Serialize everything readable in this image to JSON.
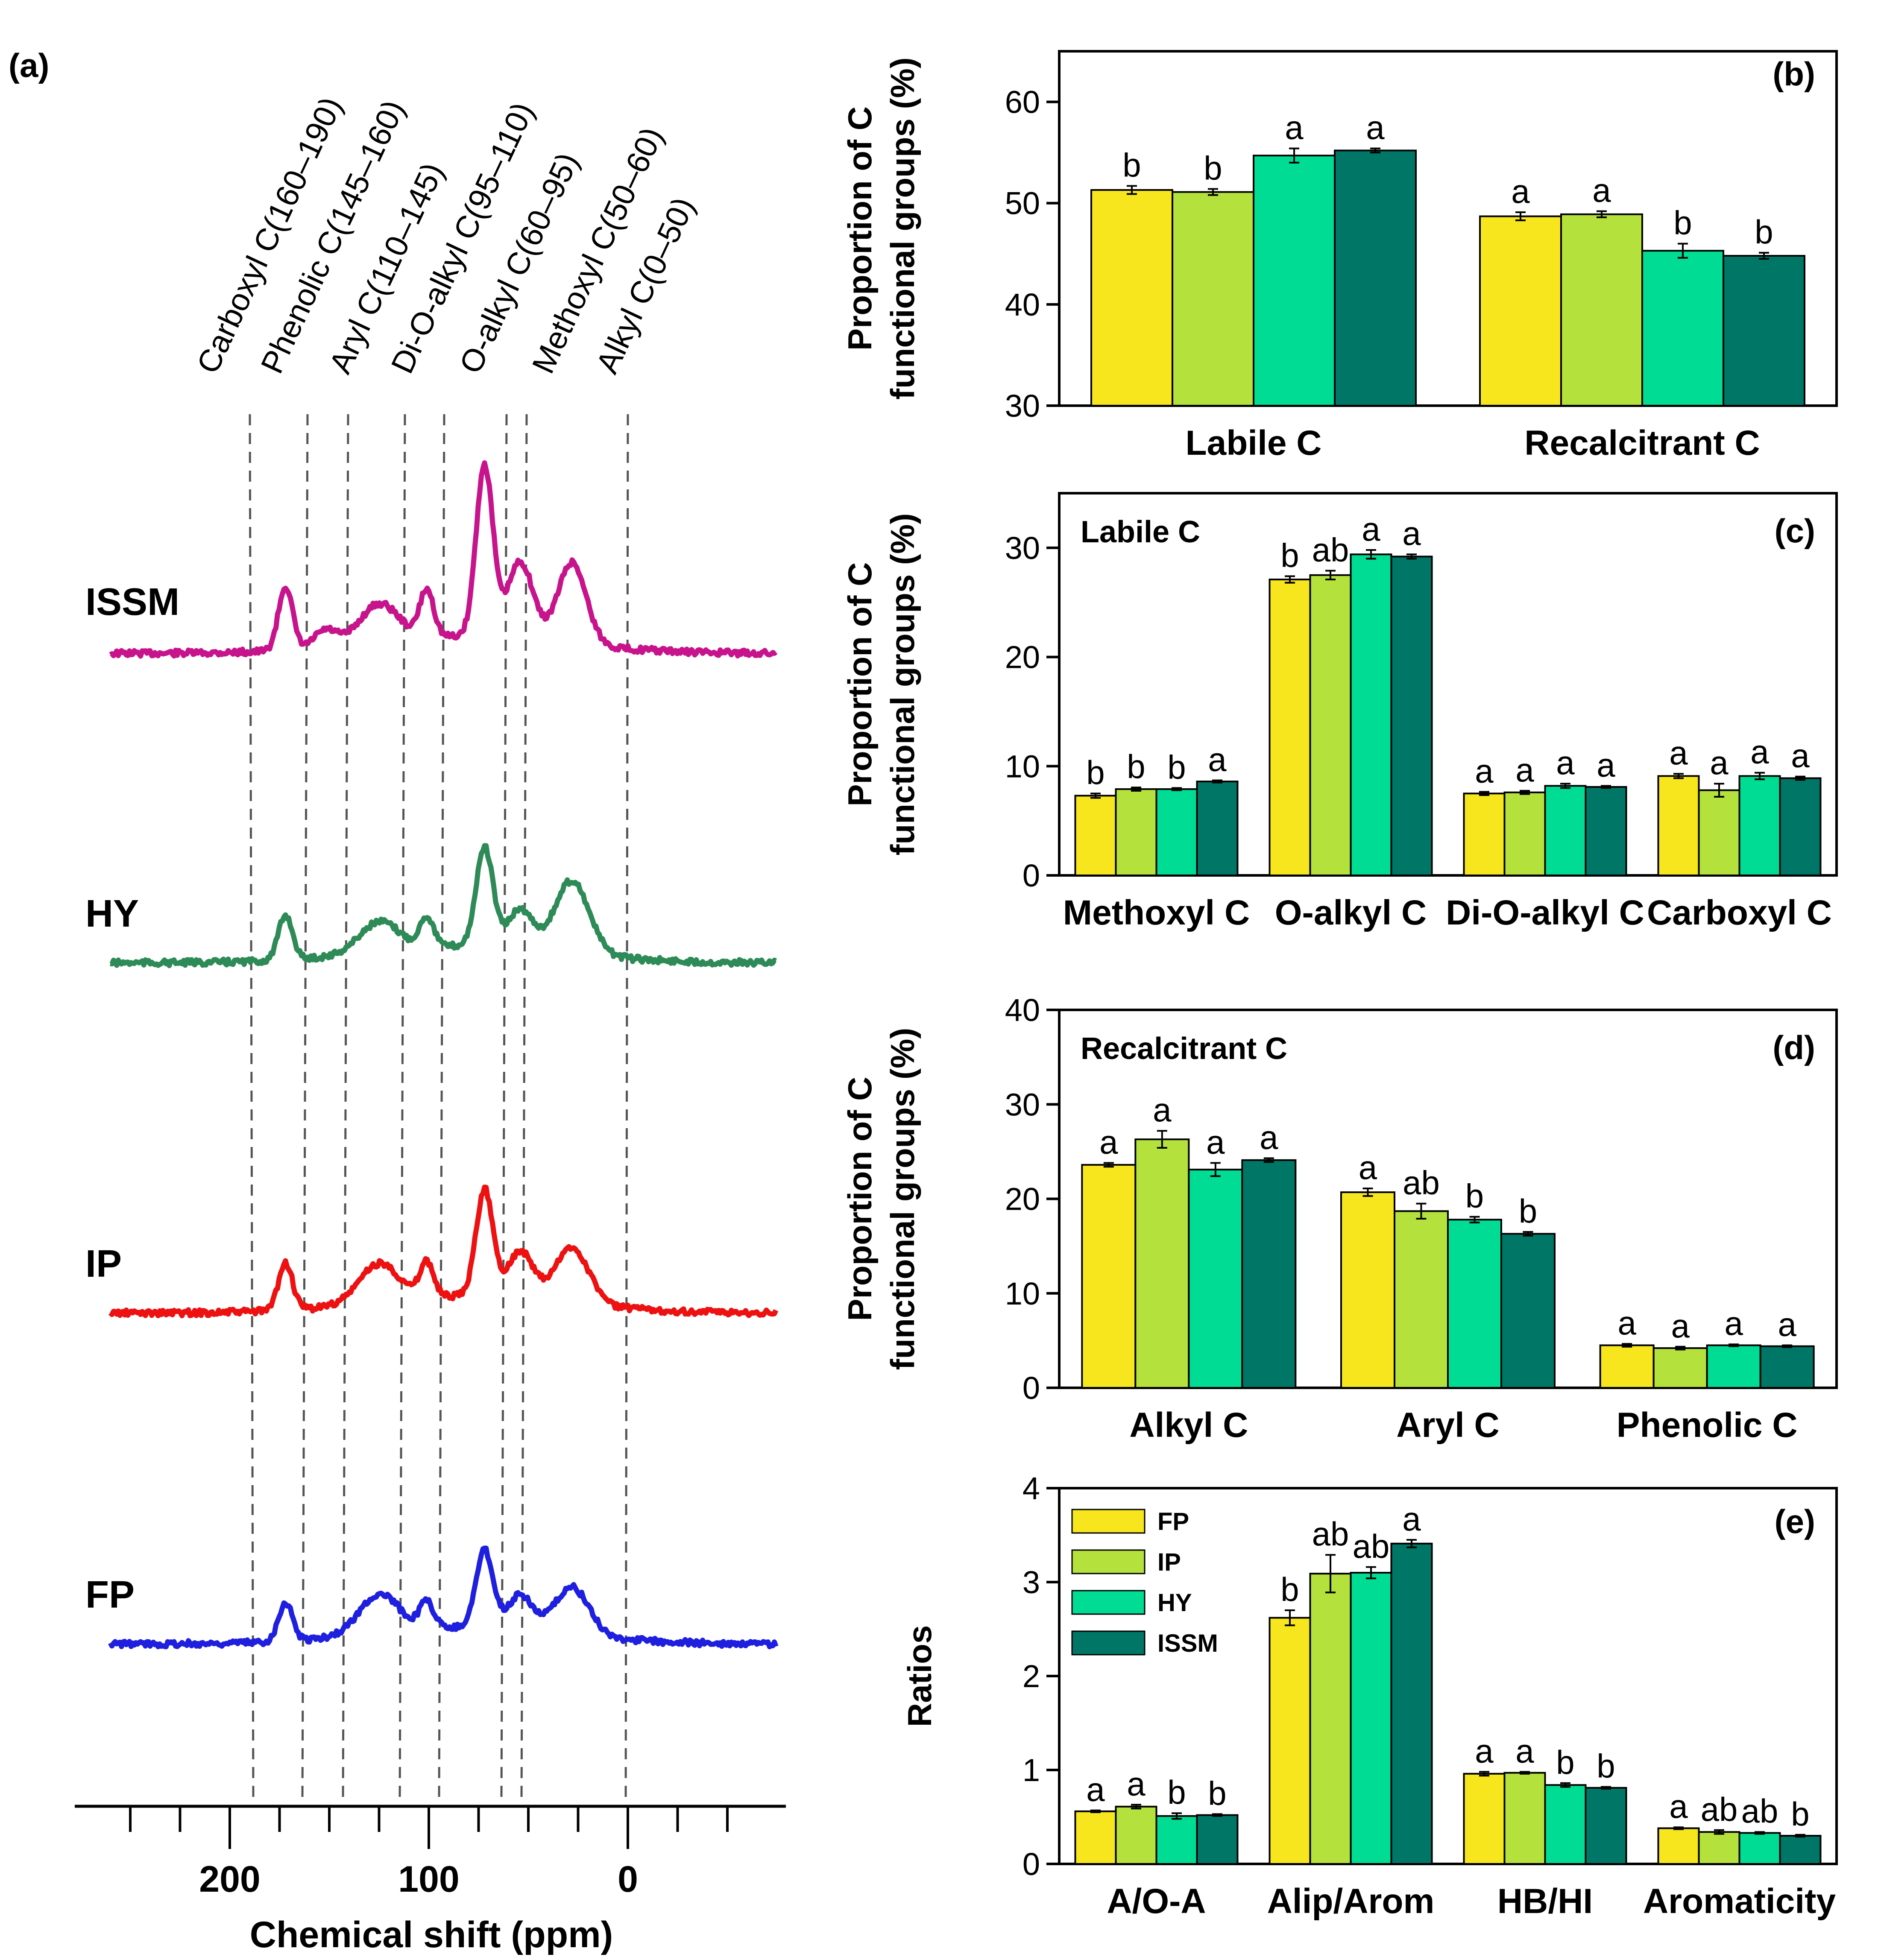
{
  "treatments": [
    "FP",
    "IP",
    "HY",
    "ISSM"
  ],
  "colors": {
    "FP": "#f7e51d",
    "IP": "#b4e13c",
    "HY": "#00dc93",
    "ISSM": "#007766"
  },
  "chart_data": [
    {
      "panel": "(a)",
      "type": "line",
      "xlabel": "Chemical shift (ppm)",
      "xticks": [
        "200",
        "100",
        "0"
      ],
      "xlim": [
        280,
        -80
      ],
      "region_labels": [
        {
          "label": "Carboxyl C(160–190)",
          "ppm": 189
        },
        {
          "label": "Phenolic C(145–160)",
          "ppm": 160
        },
        {
          "label": "Aryl C(110–145)",
          "ppm": 145
        },
        {
          "label": "Di-O-alkyl C(95–110)",
          "ppm": 110
        },
        {
          "label": "O-alkyl C(60–95)",
          "ppm": 92
        },
        {
          "label": "Methoxyl C(50–60)",
          "ppm": 61
        },
        {
          "label": "Alkyl C(0–50)",
          "ppm": 48
        }
      ],
      "divider_ppm": [
        189,
        160,
        145,
        110,
        92,
        61,
        48,
        0
      ],
      "spectra": [
        {
          "name": "ISSM",
          "color": "#c8148c",
          "peak_ppm": [
            172,
            152,
            125,
            101,
            72,
            54,
            28
          ]
        },
        {
          "name": "HY",
          "color": "#2e8b57",
          "peak_ppm": [
            172,
            125,
            101,
            72,
            54,
            28
          ]
        },
        {
          "name": "IP",
          "color": "#ee1111",
          "peak_ppm": [
            172,
            125,
            101,
            72,
            54,
            28
          ]
        },
        {
          "name": "FP",
          "color": "#1f1fe0",
          "peak_ppm": [
            172,
            125,
            101,
            72,
            54,
            28
          ]
        }
      ]
    },
    {
      "panel": "(b)",
      "type": "bar",
      "ylabel": [
        "Proportion of  C",
        "functional groups (%)"
      ],
      "ylim": [
        30,
        65
      ],
      "yticks": [
        30,
        40,
        50,
        60
      ],
      "categories": [
        "Labile C",
        "Recalcitrant C"
      ],
      "series": [
        {
          "name": "FP",
          "values": [
            51.3,
            48.7
          ],
          "errors": [
            0.4,
            0.4
          ],
          "letters": [
            "b",
            "a"
          ]
        },
        {
          "name": "IP",
          "values": [
            51.1,
            48.9
          ],
          "errors": [
            0.3,
            0.3
          ],
          "letters": [
            "b",
            "a"
          ]
        },
        {
          "name": "HY",
          "values": [
            54.7,
            45.3
          ],
          "errors": [
            0.7,
            0.7
          ],
          "letters": [
            "a",
            "b"
          ]
        },
        {
          "name": "ISSM",
          "values": [
            55.2,
            44.8
          ],
          "errors": [
            0.2,
            0.3
          ],
          "letters": [
            "a",
            "b"
          ]
        }
      ]
    },
    {
      "panel": "(c)",
      "type": "bar",
      "inset_title": "Labile C",
      "ylabel": [
        "Proportion of  C",
        "functional groups (%)"
      ],
      "ylim": [
        0,
        35
      ],
      "yticks": [
        0,
        10,
        20,
        30
      ],
      "categories": [
        "Methoxyl C",
        "O-alkyl C",
        "Di-O-alkyl C",
        "Carboxyl C"
      ],
      "series": [
        {
          "name": "FP",
          "values": [
            7.3,
            27.1,
            7.5,
            9.1
          ],
          "errors": [
            0.2,
            0.3,
            0.15,
            0.2
          ],
          "letters": [
            "b",
            "b",
            "a",
            "a"
          ]
        },
        {
          "name": "IP",
          "values": [
            7.9,
            27.5,
            7.6,
            7.8
          ],
          "errors": [
            0.15,
            0.4,
            0.15,
            0.6
          ],
          "letters": [
            "b",
            "ab",
            "a",
            "a"
          ]
        },
        {
          "name": "HY",
          "values": [
            7.9,
            29.4,
            8.2,
            9.1
          ],
          "errors": [
            0.1,
            0.4,
            0.2,
            0.3
          ],
          "letters": [
            "b",
            "a",
            "a",
            "a"
          ]
        },
        {
          "name": "ISSM",
          "values": [
            8.6,
            29.2,
            8.1,
            8.9
          ],
          "errors": [
            0.1,
            0.2,
            0.1,
            0.15
          ],
          "letters": [
            "a",
            "a",
            "a",
            "a"
          ]
        }
      ]
    },
    {
      "panel": "(d)",
      "type": "bar",
      "inset_title": "Recalcitrant C",
      "ylabel": [
        "Proportion of  C",
        "functional groups (%)"
      ],
      "ylim": [
        0,
        40
      ],
      "yticks": [
        0,
        10,
        20,
        30,
        40
      ],
      "categories": [
        "Alkyl C",
        "Aryl C",
        "Phenolic C"
      ],
      "series": [
        {
          "name": "FP",
          "values": [
            23.6,
            20.7,
            4.5
          ],
          "errors": [
            0.2,
            0.4,
            0.15
          ],
          "letters": [
            "a",
            "a",
            "a"
          ]
        },
        {
          "name": "IP",
          "values": [
            26.3,
            18.7,
            4.2
          ],
          "errors": [
            0.9,
            0.8,
            0.15
          ],
          "letters": [
            "a",
            "ab",
            "a"
          ]
        },
        {
          "name": "HY",
          "values": [
            23.1,
            17.8,
            4.5
          ],
          "errors": [
            0.7,
            0.3,
            0.1
          ],
          "letters": [
            "a",
            "b",
            "a"
          ]
        },
        {
          "name": "ISSM",
          "values": [
            24.1,
            16.3,
            4.4
          ],
          "errors": [
            0.2,
            0.2,
            0.1
          ],
          "letters": [
            "a",
            "b",
            "a"
          ]
        }
      ]
    },
    {
      "panel": "(e)",
      "type": "bar",
      "ylabel": [
        "Ratios"
      ],
      "ylim": [
        0,
        4
      ],
      "yticks": [
        0,
        1,
        2,
        3,
        4
      ],
      "categories": [
        "A/O-A",
        "Alip/Arom",
        "HB/HI",
        "Aromaticity"
      ],
      "legend": "top-left",
      "series": [
        {
          "name": "FP",
          "values": [
            0.56,
            2.62,
            0.96,
            0.38
          ],
          "errors": [
            0.01,
            0.08,
            0.02,
            0.01
          ],
          "letters": [
            "a",
            "b",
            "a",
            "a"
          ]
        },
        {
          "name": "IP",
          "values": [
            0.61,
            3.09,
            0.97,
            0.34
          ],
          "errors": [
            0.02,
            0.2,
            0.01,
            0.02
          ],
          "letters": [
            "a",
            "ab",
            "a",
            "ab"
          ]
        },
        {
          "name": "HY",
          "values": [
            0.51,
            3.1,
            0.84,
            0.33
          ],
          "errors": [
            0.03,
            0.06,
            0.02,
            0.01
          ],
          "letters": [
            "b",
            "ab",
            "b",
            "ab"
          ]
        },
        {
          "name": "ISSM",
          "values": [
            0.52,
            3.41,
            0.81,
            0.3
          ],
          "errors": [
            0.01,
            0.04,
            0.01,
            0.01
          ],
          "letters": [
            "b",
            "a",
            "b",
            "b"
          ]
        }
      ]
    }
  ]
}
